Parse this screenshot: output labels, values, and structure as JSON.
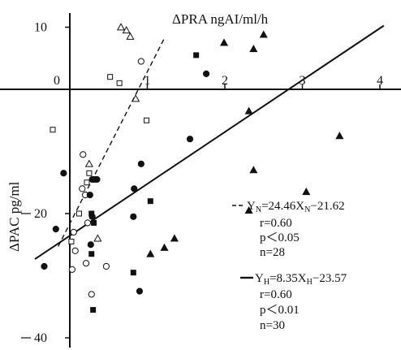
{
  "chart_data": {
    "type": "scatter",
    "title": "",
    "xlabel": "ΔPRA ngAI/ml/h",
    "ylabel": "ΔPAC pg/ml",
    "xlim": [
      -0.45,
      4.05
    ],
    "ylim": [
      -42,
      12
    ],
    "x_ticks": [
      {
        "value": 0,
        "label": "0"
      },
      {
        "value": 1,
        "label": "1"
      },
      {
        "value": 2,
        "label": "2"
      },
      {
        "value": 3,
        "label": "3"
      },
      {
        "value": 4,
        "label": "4"
      }
    ],
    "y_ticks": [
      {
        "value": 10,
        "label": "10"
      },
      {
        "value": -20,
        "label": "20"
      },
      {
        "value": -40,
        "label": "40"
      }
    ],
    "series": [
      {
        "marker": "open-triangle",
        "color": "#111111",
        "points": [
          [
            0.66,
            10
          ],
          [
            0.73,
            9.5
          ],
          [
            0.78,
            8.5
          ],
          [
            0.85,
            -1.5
          ],
          [
            0.25,
            -12
          ],
          [
            0.36,
            -24
          ]
        ]
      },
      {
        "marker": "open-square",
        "color": "#111111",
        "points": [
          [
            0.52,
            2
          ],
          [
            0.64,
            1
          ],
          [
            0.99,
            -5
          ],
          [
            -0.22,
            -6.5
          ],
          [
            0.25,
            -13.5
          ],
          [
            0.22,
            -15
          ],
          [
            0.12,
            -20
          ],
          [
            0.02,
            -24.5
          ]
        ]
      },
      {
        "marker": "open-circle",
        "color": "#111111",
        "points": [
          [
            0.92,
            4.5
          ],
          [
            0.17,
            -10.5
          ],
          [
            0.16,
            -16
          ],
          [
            0.2,
            -17
          ],
          [
            0.23,
            -21.5
          ],
          [
            0.05,
            -23
          ],
          [
            0.07,
            -26
          ],
          [
            0.21,
            -28
          ],
          [
            0.03,
            -29
          ],
          [
            0.47,
            -28.5
          ],
          [
            0.28,
            -33
          ]
        ]
      },
      {
        "marker": "filled-circle",
        "color": "#111111",
        "points": [
          [
            1.76,
            2.5
          ],
          [
            1.55,
            -8
          ],
          [
            0.92,
            -12
          ],
          [
            -0.08,
            -13.5
          ],
          [
            0.83,
            -16
          ],
          [
            0.29,
            -14.5
          ],
          [
            0.32,
            -14.5
          ],
          [
            0.35,
            -14.5
          ],
          [
            0.26,
            -17
          ],
          [
            0.29,
            -20.5
          ],
          [
            0.82,
            -20.5
          ],
          [
            -0.18,
            -22.5
          ],
          [
            0.27,
            -25
          ],
          [
            -0.33,
            -28.5
          ],
          [
            0.9,
            -32.5
          ]
        ]
      },
      {
        "marker": "filled-square",
        "color": "#111111",
        "points": [
          [
            1.63,
            5.5
          ],
          [
            1.04,
            -18
          ],
          [
            0.28,
            -20
          ],
          [
            0.31,
            -21.5
          ],
          [
            0.28,
            -26.5
          ],
          [
            0.82,
            -29.5
          ],
          [
            0.3,
            -35.5
          ]
        ]
      },
      {
        "marker": "filled-triangle",
        "color": "#111111",
        "points": [
          [
            1.99,
            7.5
          ],
          [
            2.37,
            6.5
          ],
          [
            2.5,
            8.8
          ],
          [
            2.31,
            -3.5
          ],
          [
            3.48,
            -7.5
          ],
          [
            2.37,
            -13
          ],
          [
            3.05,
            -16.5
          ],
          [
            2.31,
            -19.5
          ],
          [
            1.35,
            -24
          ],
          [
            1.22,
            -25.5
          ],
          [
            1.04,
            -26.5
          ]
        ]
      }
    ],
    "lines": [
      {
        "kind": "dashed",
        "slope": 24.46,
        "intercept": -21.62,
        "x_range": [
          -0.15,
          1.22
        ]
      },
      {
        "kind": "solid",
        "slope": 8.35,
        "intercept": -23.57,
        "x_range": [
          -0.45,
          4.05
        ]
      }
    ],
    "annotations": {
      "dashed_eq": "Y",
      "dashed_sub": "N",
      "dashed_eq_rest": "=24.46X",
      "dashed_sub2": "N",
      "dashed_tail": "−21.62",
      "dashed_stats": [
        "r=0.60",
        "p＜0.05",
        "n=28"
      ],
      "solid_eq": "Y",
      "solid_sub": "H",
      "solid_eq_rest": "=8.35X",
      "solid_sub2": "H",
      "solid_tail": "−23.57",
      "solid_stats": [
        "r=0.60",
        "p＜0.01",
        "n=30"
      ]
    }
  }
}
